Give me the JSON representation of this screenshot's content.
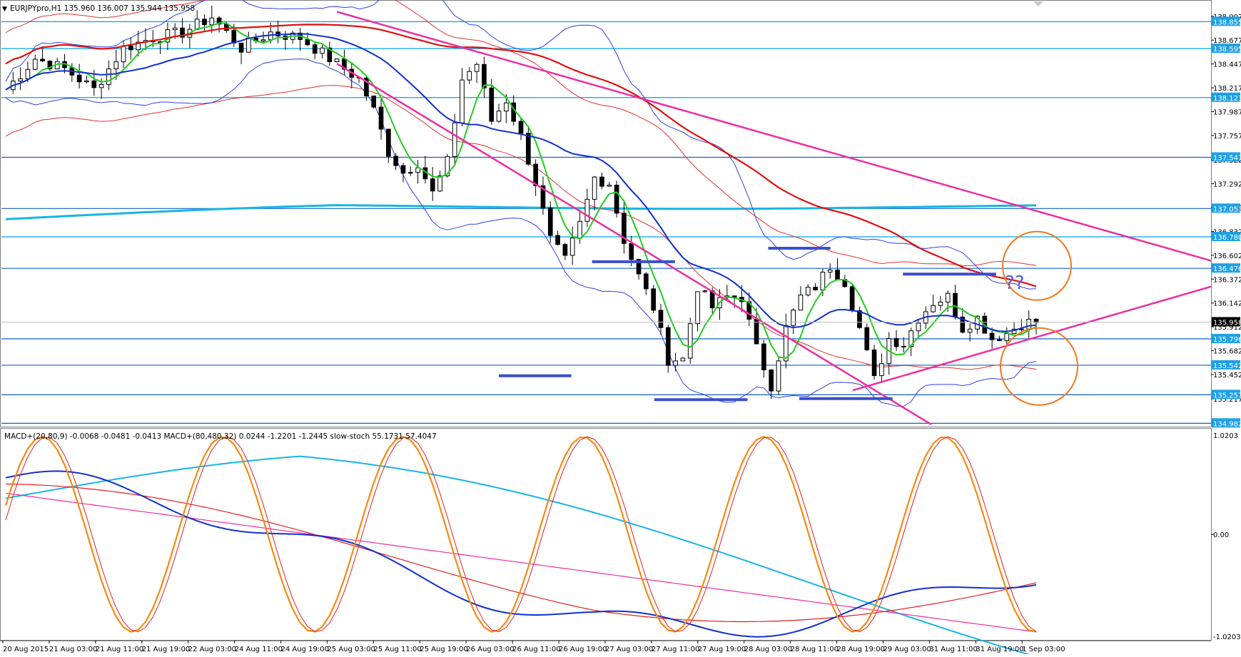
{
  "header": {
    "symbol_line": "EURJPYpro,H1  135.960 136.007 135.944 135.958",
    "indicator_line": "MACD+(20,80,9) -0.0068 -0.0481 -0.0413  MACD+(80,480,32) 0.0244 -1.2201 -1.2445  slow-stoch 55.1731 57.4047"
  },
  "colors": {
    "background": "#ffffff",
    "hline": "#00a3e8",
    "hline_dark": "#1060c8",
    "trend": "#ec2fa0",
    "zone": "#3b4fc8",
    "candle": "#000000",
    "ma_fast": "#22cc22",
    "ma_mid": "#1030d0",
    "ma_slow": "#e01010",
    "ma_long": "#19b4e6",
    "bands": "#3040e0",
    "env": "#e83030",
    "circle": "#f07820",
    "question": "#5560d8",
    "price_tag_bg": "#1ea0e8",
    "current_tag_bg": "#000000",
    "macd1": "#1030d0",
    "signal1": "#e02020",
    "macd2": "#19b4e6",
    "signal2": "#ec2fa0",
    "stoch_k": "#f58a10",
    "stoch_d": "#e02020"
  },
  "chart_data": [
    {
      "type": "candlestick",
      "name": "EURJPYpro,H1",
      "ylim": [
        134.95,
        139.05
      ],
      "y_ticks": [
        "138.907",
        "138.677",
        "138.447",
        "138.217",
        "137.987",
        "137.757",
        "137.522",
        "137.292",
        "137.062",
        "136.832",
        "136.602",
        "136.372",
        "136.142",
        "135.912",
        "135.682",
        "135.452",
        "135.217"
      ],
      "levels": [
        {
          "value": 138.855,
          "label": "138.855",
          "style": "light"
        },
        {
          "value": 138.595,
          "label": "138.595",
          "style": "light"
        },
        {
          "value": 138.123,
          "label": "138.123",
          "style": "light"
        },
        {
          "value": 137.547,
          "label": "137.547",
          "style": "dark"
        },
        {
          "value": 137.053,
          "label": "137.053",
          "style": "dark"
        },
        {
          "value": 136.78,
          "label": "136.780",
          "style": "light"
        },
        {
          "value": 136.476,
          "label": "136.476",
          "style": "dark"
        },
        {
          "value": 135.796,
          "label": "135.796",
          "style": "dark"
        },
        {
          "value": 135.542,
          "label": "135.542",
          "style": "dark"
        },
        {
          "value": 135.257,
          "label": "135.257",
          "style": "dark"
        },
        {
          "value": 134.982,
          "label": "134.982",
          "style": "dark"
        }
      ],
      "current_price": {
        "value": 135.958,
        "label": "135.958"
      },
      "annotation": "??",
      "x_labels": [
        "20 Aug 2015",
        "21 Aug 03:00",
        "21 Aug 11:00",
        "21 Aug 19:00",
        "22 Aug 03:00",
        "24 Aug 11:00",
        "24 Aug 19:00",
        "25 Aug 03:00",
        "25 Aug 11:00",
        "25 Aug 19:00",
        "26 Aug 03:00",
        "26 Aug 11:00",
        "26 Aug 19:00",
        "27 Aug 03:00",
        "27 Aug 11:00",
        "27 Aug 19:00",
        "28 Aug 03:00",
        "28 Aug 11:00",
        "28 Aug 19:00",
        "29 Aug 03:00",
        "31 Aug 11:00",
        "31 Aug 19:00",
        "1 Sep 03:00"
      ],
      "close_path": [
        [
          0,
          138.2
        ],
        [
          4,
          138.5
        ],
        [
          8,
          138.4
        ],
        [
          12,
          138.2
        ],
        [
          16,
          138.6
        ],
        [
          20,
          138.7
        ],
        [
          24,
          138.75
        ],
        [
          28,
          138.9
        ],
        [
          32,
          138.6
        ],
        [
          36,
          138.75
        ],
        [
          40,
          138.7
        ],
        [
          44,
          138.5
        ],
        [
          48,
          138.3
        ],
        [
          50,
          138.0
        ],
        [
          52,
          137.6
        ],
        [
          54,
          137.4
        ],
        [
          56,
          137.5
        ],
        [
          58,
          137.2
        ],
        [
          60,
          137.5
        ],
        [
          62,
          138.3
        ],
        [
          64,
          138.45
        ],
        [
          66,
          137.9
        ],
        [
          68,
          138.1
        ],
        [
          70,
          137.75
        ],
        [
          72,
          137.3
        ],
        [
          74,
          136.75
        ],
        [
          76,
          136.55
        ],
        [
          78,
          136.9
        ],
        [
          80,
          137.35
        ],
        [
          82,
          137.3
        ],
        [
          84,
          136.75
        ],
        [
          86,
          136.4
        ],
        [
          88,
          136.1
        ],
        [
          90,
          135.6
        ],
        [
          92,
          135.6
        ],
        [
          94,
          136.3
        ],
        [
          96,
          136.1
        ],
        [
          98,
          136.2
        ],
        [
          100,
          136.2
        ],
        [
          102,
          135.7
        ],
        [
          104,
          135.35
        ],
        [
          106,
          135.9
        ],
        [
          108,
          136.2
        ],
        [
          110,
          136.3
        ],
        [
          112,
          136.5
        ],
        [
          114,
          136.35
        ],
        [
          116,
          135.9
        ],
        [
          118,
          135.4
        ],
        [
          120,
          135.8
        ],
        [
          122,
          135.75
        ],
        [
          124,
          136.0
        ],
        [
          126,
          136.15
        ],
        [
          128,
          136.2
        ],
        [
          130,
          135.9
        ],
        [
          132,
          136.0
        ],
        [
          134,
          135.8
        ],
        [
          136,
          135.85
        ],
        [
          138,
          135.95
        ],
        [
          140,
          135.96
        ]
      ],
      "candle_spacing_hours": 1
    },
    {
      "type": "line",
      "name": "MACD / slow-stoch panel",
      "ylim": [
        -1.0203,
        1.0203
      ],
      "y_ticks": [
        "1.0203",
        "0.00",
        "-1.0203"
      ]
    }
  ]
}
